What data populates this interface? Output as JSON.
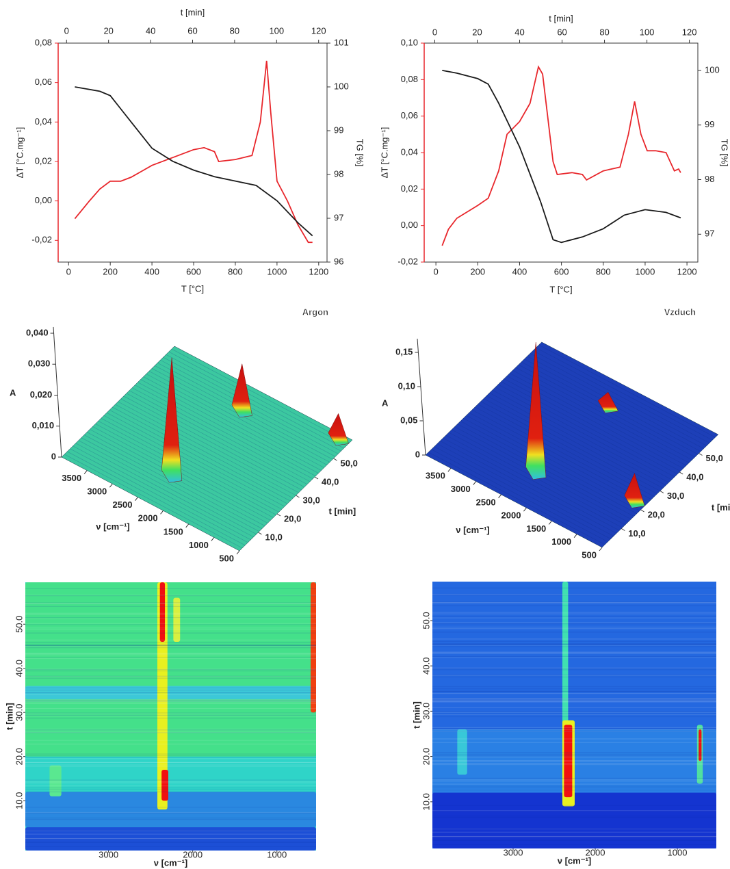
{
  "chart_data": [
    {
      "type": "line",
      "xlabel": "T [°C]",
      "xlim": [
        -50,
        1240
      ],
      "xticks": [
        0,
        200,
        400,
        600,
        800,
        1000,
        1200
      ],
      "x2label": "t [min]",
      "x2lim": [
        -4,
        124
      ],
      "x2ticks": [
        0,
        20,
        40,
        60,
        80,
        100,
        120
      ],
      "ylabel": "ΔT [°C.mg⁻¹]",
      "ylim": [
        -0.031,
        0.08
      ],
      "yticks": [
        {
          "value": -0.02,
          "label": "-0,02"
        },
        {
          "value": 0,
          "label": "0,00"
        },
        {
          "value": 0.02,
          "label": "0,02"
        },
        {
          "value": 0.04,
          "label": "0,04"
        },
        {
          "value": 0.06,
          "label": "0,06"
        },
        {
          "value": 0.08,
          "label": "0,08"
        }
      ],
      "y2label": "TG [%]",
      "y2lim": [
        96,
        101
      ],
      "y2ticks": [
        96,
        97,
        98,
        99,
        100,
        101
      ],
      "series": [
        {
          "color": "#e8262b",
          "axis": "y",
          "x": [
            30,
            100,
            150,
            200,
            250,
            300,
            350,
            400,
            500,
            600,
            650,
            700,
            720,
            800,
            880,
            920,
            950,
            970,
            1000,
            1050,
            1100,
            1150,
            1170
          ],
          "values": [
            -0.009,
            0.0,
            0.006,
            0.01,
            0.01,
            0.012,
            0.015,
            0.018,
            0.022,
            0.026,
            0.027,
            0.025,
            0.02,
            0.021,
            0.023,
            0.04,
            0.071,
            0.045,
            0.01,
            0.0,
            -0.012,
            -0.021,
            -0.021
          ]
        },
        {
          "color": "#1a1a1a",
          "axis": "y2",
          "x": [
            30,
            150,
            200,
            250,
            300,
            400,
            500,
            600,
            700,
            800,
            900,
            1000,
            1100,
            1170
          ],
          "values": [
            100,
            99.9,
            99.8,
            99.5,
            99.2,
            98.6,
            98.3,
            98.1,
            97.95,
            97.85,
            97.75,
            97.4,
            96.9,
            96.6
          ]
        }
      ]
    },
    {
      "type": "line",
      "xlabel": "T [°C]",
      "xlim": [
        -56,
        1252
      ],
      "xticks": [
        0,
        200,
        400,
        600,
        800,
        1000,
        1200
      ],
      "x2label": "t [min]",
      "x2lim": [
        -5,
        124
      ],
      "x2ticks": [
        0,
        20,
        40,
        60,
        80,
        100,
        120
      ],
      "ylabel": "ΔT [°C.mg⁻¹]",
      "ylim": [
        -0.02,
        0.1
      ],
      "yticks": [
        {
          "value": -0.02,
          "label": "-0,02"
        },
        {
          "value": 0,
          "label": "0,00"
        },
        {
          "value": 0.02,
          "label": "0,02"
        },
        {
          "value": 0.04,
          "label": "0,04"
        },
        {
          "value": 0.06,
          "label": "0,06"
        },
        {
          "value": 0.08,
          "label": "0,08"
        },
        {
          "value": 0.1,
          "label": "0,10"
        }
      ],
      "y2label": "TG [%]",
      "y2lim": [
        96.49,
        100.5
      ],
      "y2ticks": [
        97,
        98,
        99,
        100
      ],
      "series": [
        {
          "color": "#e8262b",
          "axis": "y",
          "x": [
            30,
            60,
            100,
            200,
            250,
            300,
            340,
            400,
            450,
            490,
            510,
            560,
            580,
            650,
            700,
            720,
            800,
            880,
            920,
            950,
            980,
            1010,
            1050,
            1100,
            1140,
            1160,
            1170
          ],
          "values": [
            -0.011,
            -0.002,
            0.004,
            0.011,
            0.015,
            0.03,
            0.05,
            0.057,
            0.067,
            0.087,
            0.083,
            0.035,
            0.028,
            0.029,
            0.028,
            0.025,
            0.03,
            0.032,
            0.05,
            0.068,
            0.05,
            0.041,
            0.041,
            0.04,
            0.03,
            0.031,
            0.029
          ]
        },
        {
          "color": "#1a1a1a",
          "axis": "y2",
          "x": [
            30,
            100,
            200,
            250,
            300,
            400,
            450,
            500,
            560,
            600,
            700,
            800,
            900,
            1000,
            1100,
            1170
          ],
          "values": [
            100,
            99.95,
            99.85,
            99.75,
            99.4,
            98.6,
            98.1,
            97.6,
            96.9,
            96.85,
            96.95,
            97.1,
            97.35,
            97.45,
            97.4,
            97.3
          ]
        }
      ]
    },
    {
      "type": "surface3d",
      "title": "Argon",
      "zlabel": "A",
      "zlim": [
        0,
        0.042
      ],
      "zticks": [
        0,
        {
          "value": 0.01,
          "label": "0,010"
        },
        {
          "value": 0.02,
          "label": "0,020"
        },
        {
          "value": 0.03,
          "label": "0,030"
        },
        {
          "value": 0.04,
          "label": "0,040"
        }
      ],
      "xlabel": "ν [cm⁻¹]",
      "xlim": [
        4000,
        500
      ],
      "xticks": [
        3500,
        3000,
        2500,
        2000,
        1500,
        1000,
        500
      ],
      "ylabel": "t [min]",
      "ylim": [
        0,
        60
      ],
      "yticks": [
        {
          "value": 10,
          "label": "10,0"
        },
        {
          "value": 20,
          "label": "20,0"
        },
        {
          "value": 30,
          "label": "30,0"
        },
        {
          "value": 40,
          "label": "40,0"
        },
        {
          "value": 50,
          "label": "50,0"
        }
      ],
      "floor_color": "#3cc8a0",
      "peaks": [
        {
          "nu": 2350,
          "t": 14,
          "A": 0.038
        },
        {
          "nu": 2300,
          "t": 50,
          "A": 0.015
        },
        {
          "nu": 700,
          "t": 58,
          "A": 0.008
        }
      ]
    },
    {
      "type": "surface3d",
      "title": "Vzduch",
      "zlabel": "A",
      "zlim": [
        0,
        0.17
      ],
      "zticks": [
        0,
        {
          "value": 0.05,
          "label": "0,05"
        },
        {
          "value": 0.1,
          "label": "0,10"
        },
        {
          "value": 0.15,
          "label": "0,15"
        }
      ],
      "xlabel": "ν [cm⁻¹]",
      "xlim": [
        4000,
        500
      ],
      "xticks": [
        3500,
        3000,
        2500,
        2000,
        1500,
        1000,
        500
      ],
      "ylabel": "t [min]",
      "ylim": [
        0,
        60
      ],
      "yticks": [
        {
          "value": 10,
          "label": "10,0"
        },
        {
          "value": 20,
          "label": "20,0"
        },
        {
          "value": 30,
          "label": "30,0"
        },
        {
          "value": 40,
          "label": "40,0"
        },
        {
          "value": 50,
          "label": "50,0"
        }
      ],
      "floor_color": "#1d3fb8",
      "peaks": [
        {
          "nu": 2350,
          "t": 14,
          "A": 0.19
        },
        {
          "nu": 2300,
          "t": 50,
          "A": 0.02
        },
        {
          "nu": 700,
          "t": 22,
          "A": 0.04
        }
      ]
    },
    {
      "type": "heatmap",
      "xlabel": "ν [cm⁻¹]",
      "xlim": [
        3988,
        535
      ],
      "xticks": [
        3000,
        2000,
        1000
      ],
      "ylabel": "t [min]",
      "ylim": [
        -1.3,
        59.5
      ],
      "yticks": [
        {
          "value": 10,
          "label": "10.0"
        },
        {
          "value": 20,
          "label": "20.0"
        },
        {
          "value": 30,
          "label": "30.0"
        },
        {
          "value": 40,
          "label": "40.0"
        },
        {
          "value": 50,
          "label": "50.0"
        }
      ],
      "background": "#2fd4c8",
      "regions": [
        {
          "nu": [
            3988,
            535
          ],
          "t": [
            20,
            59.5
          ],
          "color": "#44e08a"
        },
        {
          "nu": [
            3988,
            535
          ],
          "t": [
            -1.3,
            4
          ],
          "color": "#1c4fd6"
        },
        {
          "nu": [
            3988,
            535
          ],
          "t": [
            4,
            12
          ],
          "color": "#2a88e0"
        },
        {
          "nu": [
            3988,
            535
          ],
          "t": [
            33,
            36
          ],
          "color": "#3cc8d8"
        },
        {
          "nu": [
            3700,
            3560
          ],
          "t": [
            11,
            18
          ],
          "color": "#5ae890"
        },
        {
          "nu": [
            2420,
            2300
          ],
          "t": [
            8,
            59.5
          ],
          "color": "#e8f020"
        },
        {
          "nu": [
            2390,
            2330
          ],
          "t": [
            46,
            59.5
          ],
          "color": "#f01010"
        },
        {
          "nu": [
            2370,
            2290
          ],
          "t": [
            10,
            17
          ],
          "color": "#f01010"
        },
        {
          "nu": [
            2230,
            2150
          ],
          "t": [
            46,
            56
          ],
          "color": "#d8f040"
        },
        {
          "nu": [
            600,
            535
          ],
          "t": [
            30,
            59.5
          ],
          "color": "#f04010"
        }
      ]
    },
    {
      "type": "heatmap",
      "xlabel": "ν [cm⁻¹]",
      "xlim": [
        3983,
        525
      ],
      "xticks": [
        3000,
        2000,
        1000
      ],
      "ylabel": "t [min]",
      "ylim": [
        -0.3,
        58.6
      ],
      "yticks": [
        {
          "value": 10,
          "label": "10.0"
        },
        {
          "value": 20,
          "label": "20.0"
        },
        {
          "value": 30,
          "label": "30.0"
        },
        {
          "value": 40,
          "label": "40.0"
        },
        {
          "value": 50,
          "label": "50.0"
        }
      ],
      "background": "#2468e0",
      "regions": [
        {
          "nu": [
            3983,
            525
          ],
          "t": [
            -0.3,
            12
          ],
          "color": "#1434d0"
        },
        {
          "nu": [
            3983,
            525
          ],
          "t": [
            12,
            26
          ],
          "color": "#2a80e4"
        },
        {
          "nu": [
            3680,
            3560
          ],
          "t": [
            16,
            26
          ],
          "color": "#38c8d8"
        },
        {
          "nu": [
            2400,
            2330
          ],
          "t": [
            26,
            58.6
          ],
          "color": "#40e0b0"
        },
        {
          "nu": [
            2400,
            2250
          ],
          "t": [
            9,
            28
          ],
          "color": "#e8f020"
        },
        {
          "nu": [
            2380,
            2280
          ],
          "t": [
            11,
            27
          ],
          "color": "#f01010"
        },
        {
          "nu": [
            760,
            690
          ],
          "t": [
            14,
            27
          ],
          "color": "#50e0a0"
        },
        {
          "nu": [
            740,
            705
          ],
          "t": [
            19,
            26
          ],
          "color": "#f01010"
        }
      ]
    }
  ]
}
